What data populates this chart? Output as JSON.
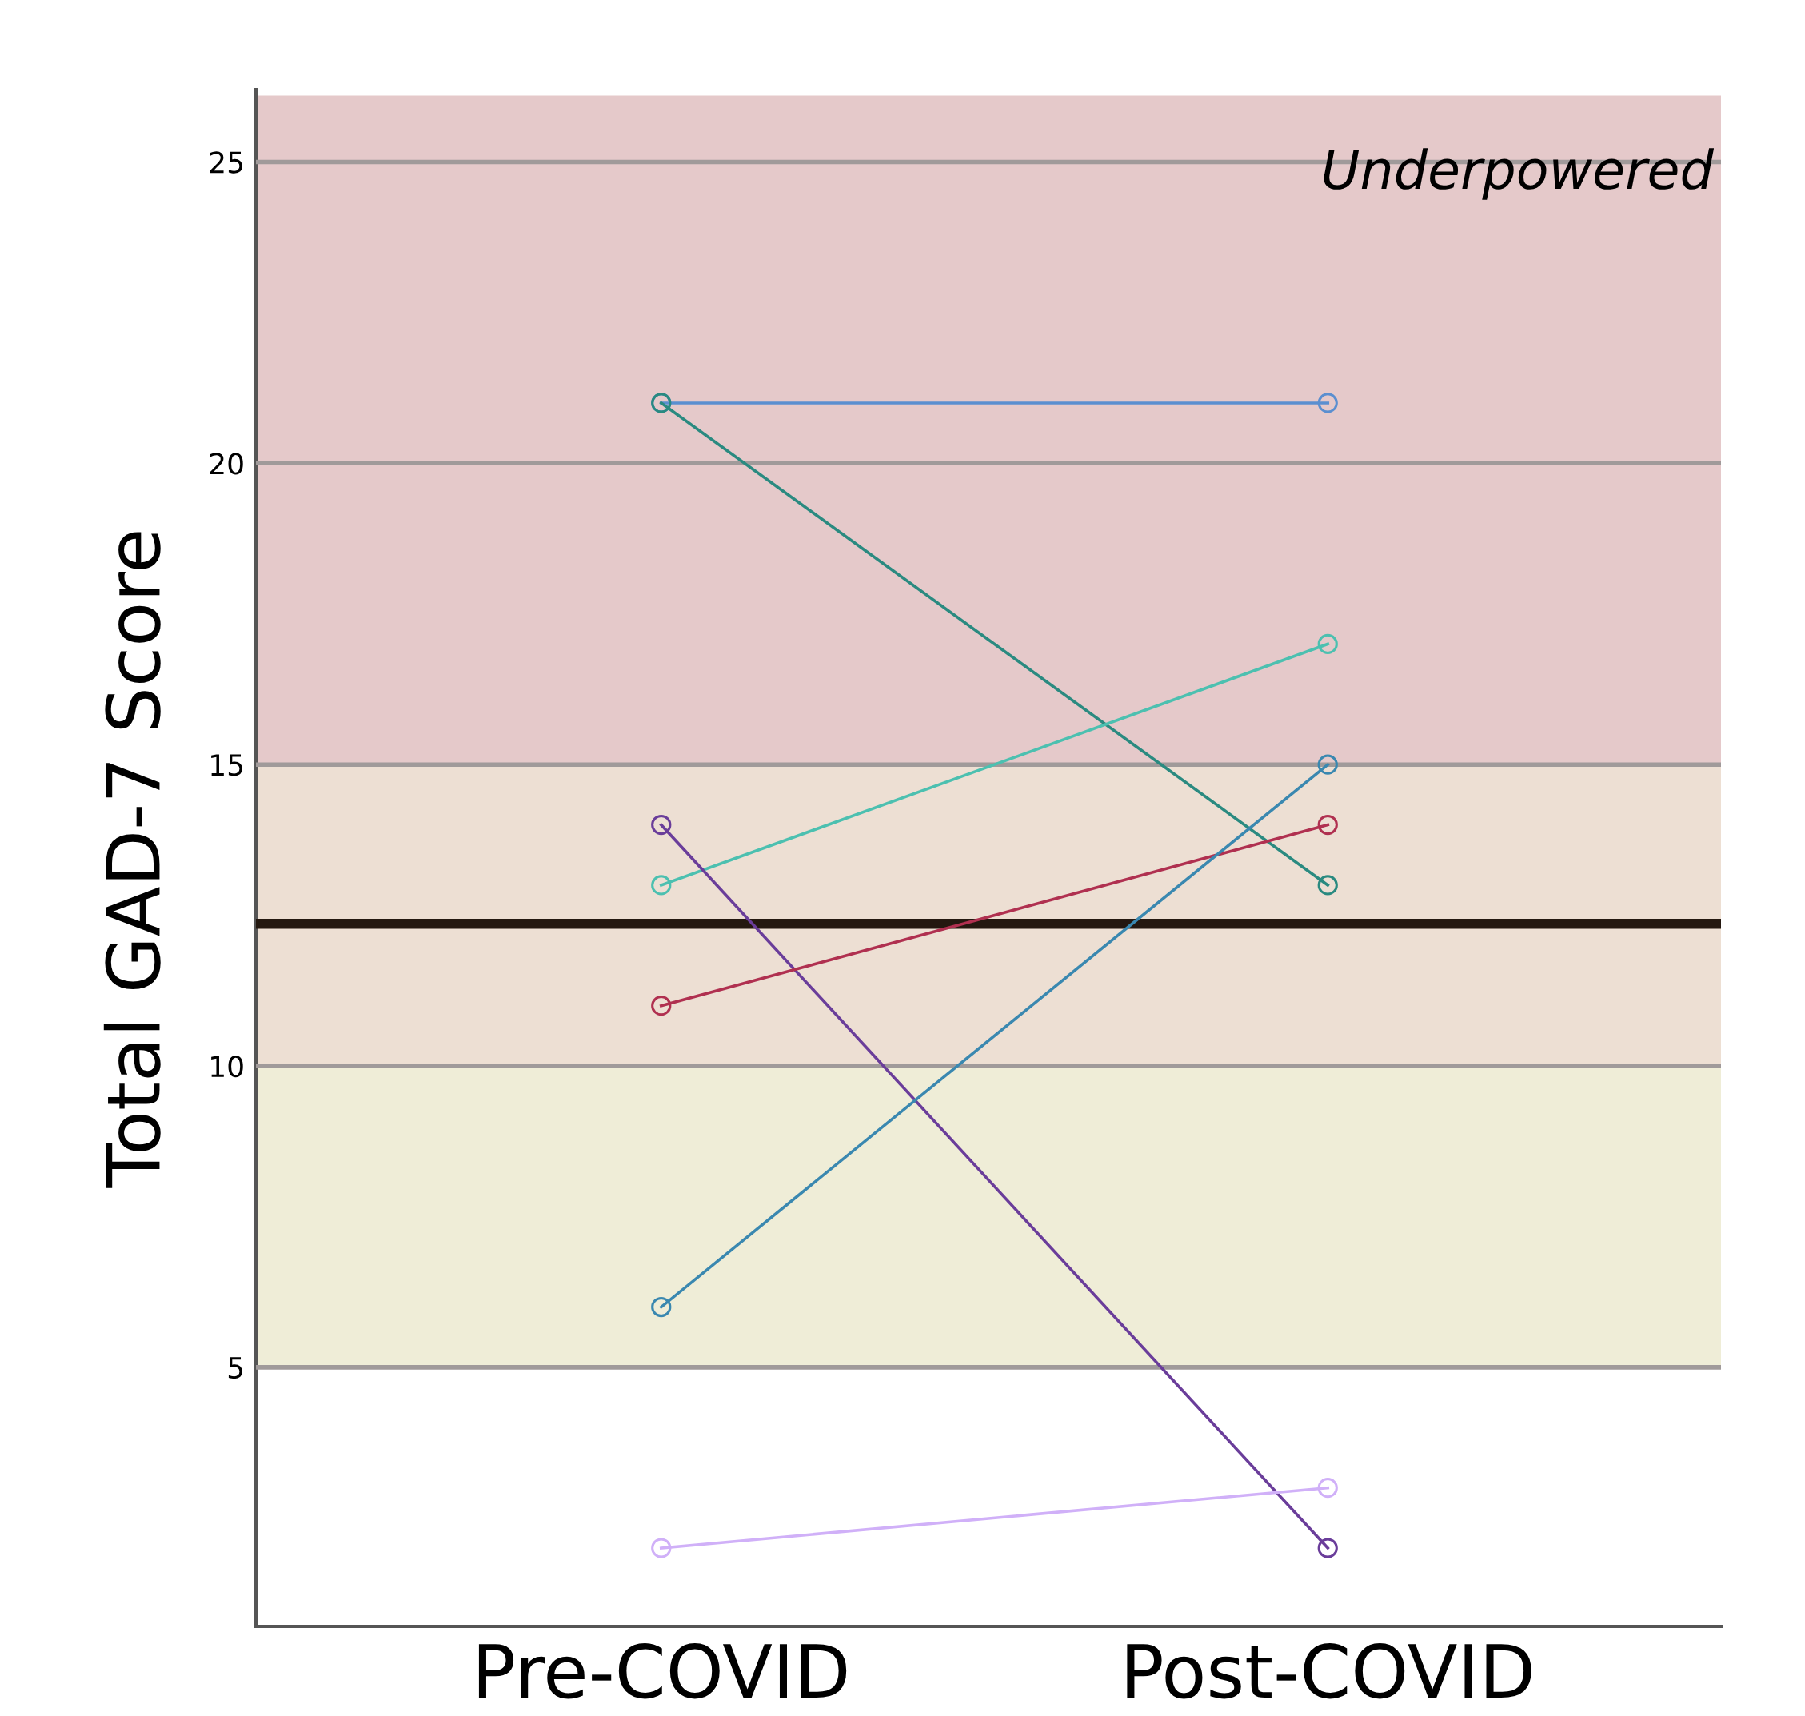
{
  "chart_data": {
    "type": "line",
    "ylabel": "Total GAD-7 Score",
    "categories": [
      "Pre-COVID",
      "Post-COVID"
    ],
    "series": [
      {
        "color": "#5b8fd0",
        "values": [
          21,
          21
        ]
      },
      {
        "color": "#2a8a80",
        "values": [
          21,
          13
        ]
      },
      {
        "color": "#4cc0b0",
        "values": [
          13,
          17
        ]
      },
      {
        "color": "#6a3d9a",
        "values": [
          14,
          2
        ]
      },
      {
        "color": "#b03050",
        "values": [
          11,
          14
        ]
      },
      {
        "color": "#3a88b0",
        "values": [
          6,
          15
        ]
      },
      {
        "color": "#d0b0f8",
        "values": [
          2,
          3
        ]
      }
    ],
    "ylim": [
      0.7,
      26.2
    ],
    "yticks": [
      5,
      10,
      15,
      20,
      25
    ],
    "grid": "y",
    "marker": "circle",
    "line_style": "solid",
    "ref_lines": [
      {
        "axis": "y",
        "value": 12.36,
        "color": "#241810"
      }
    ],
    "bands": [
      {
        "axis": "y",
        "from": 15,
        "to": 26.1,
        "label": "Underpowered",
        "color": "#e5c9ca"
      },
      {
        "axis": "y",
        "from": 10,
        "to": 15,
        "color": "#eddfd3"
      },
      {
        "axis": "y",
        "from": 5,
        "to": 10,
        "color": "#efedd7"
      }
    ]
  }
}
